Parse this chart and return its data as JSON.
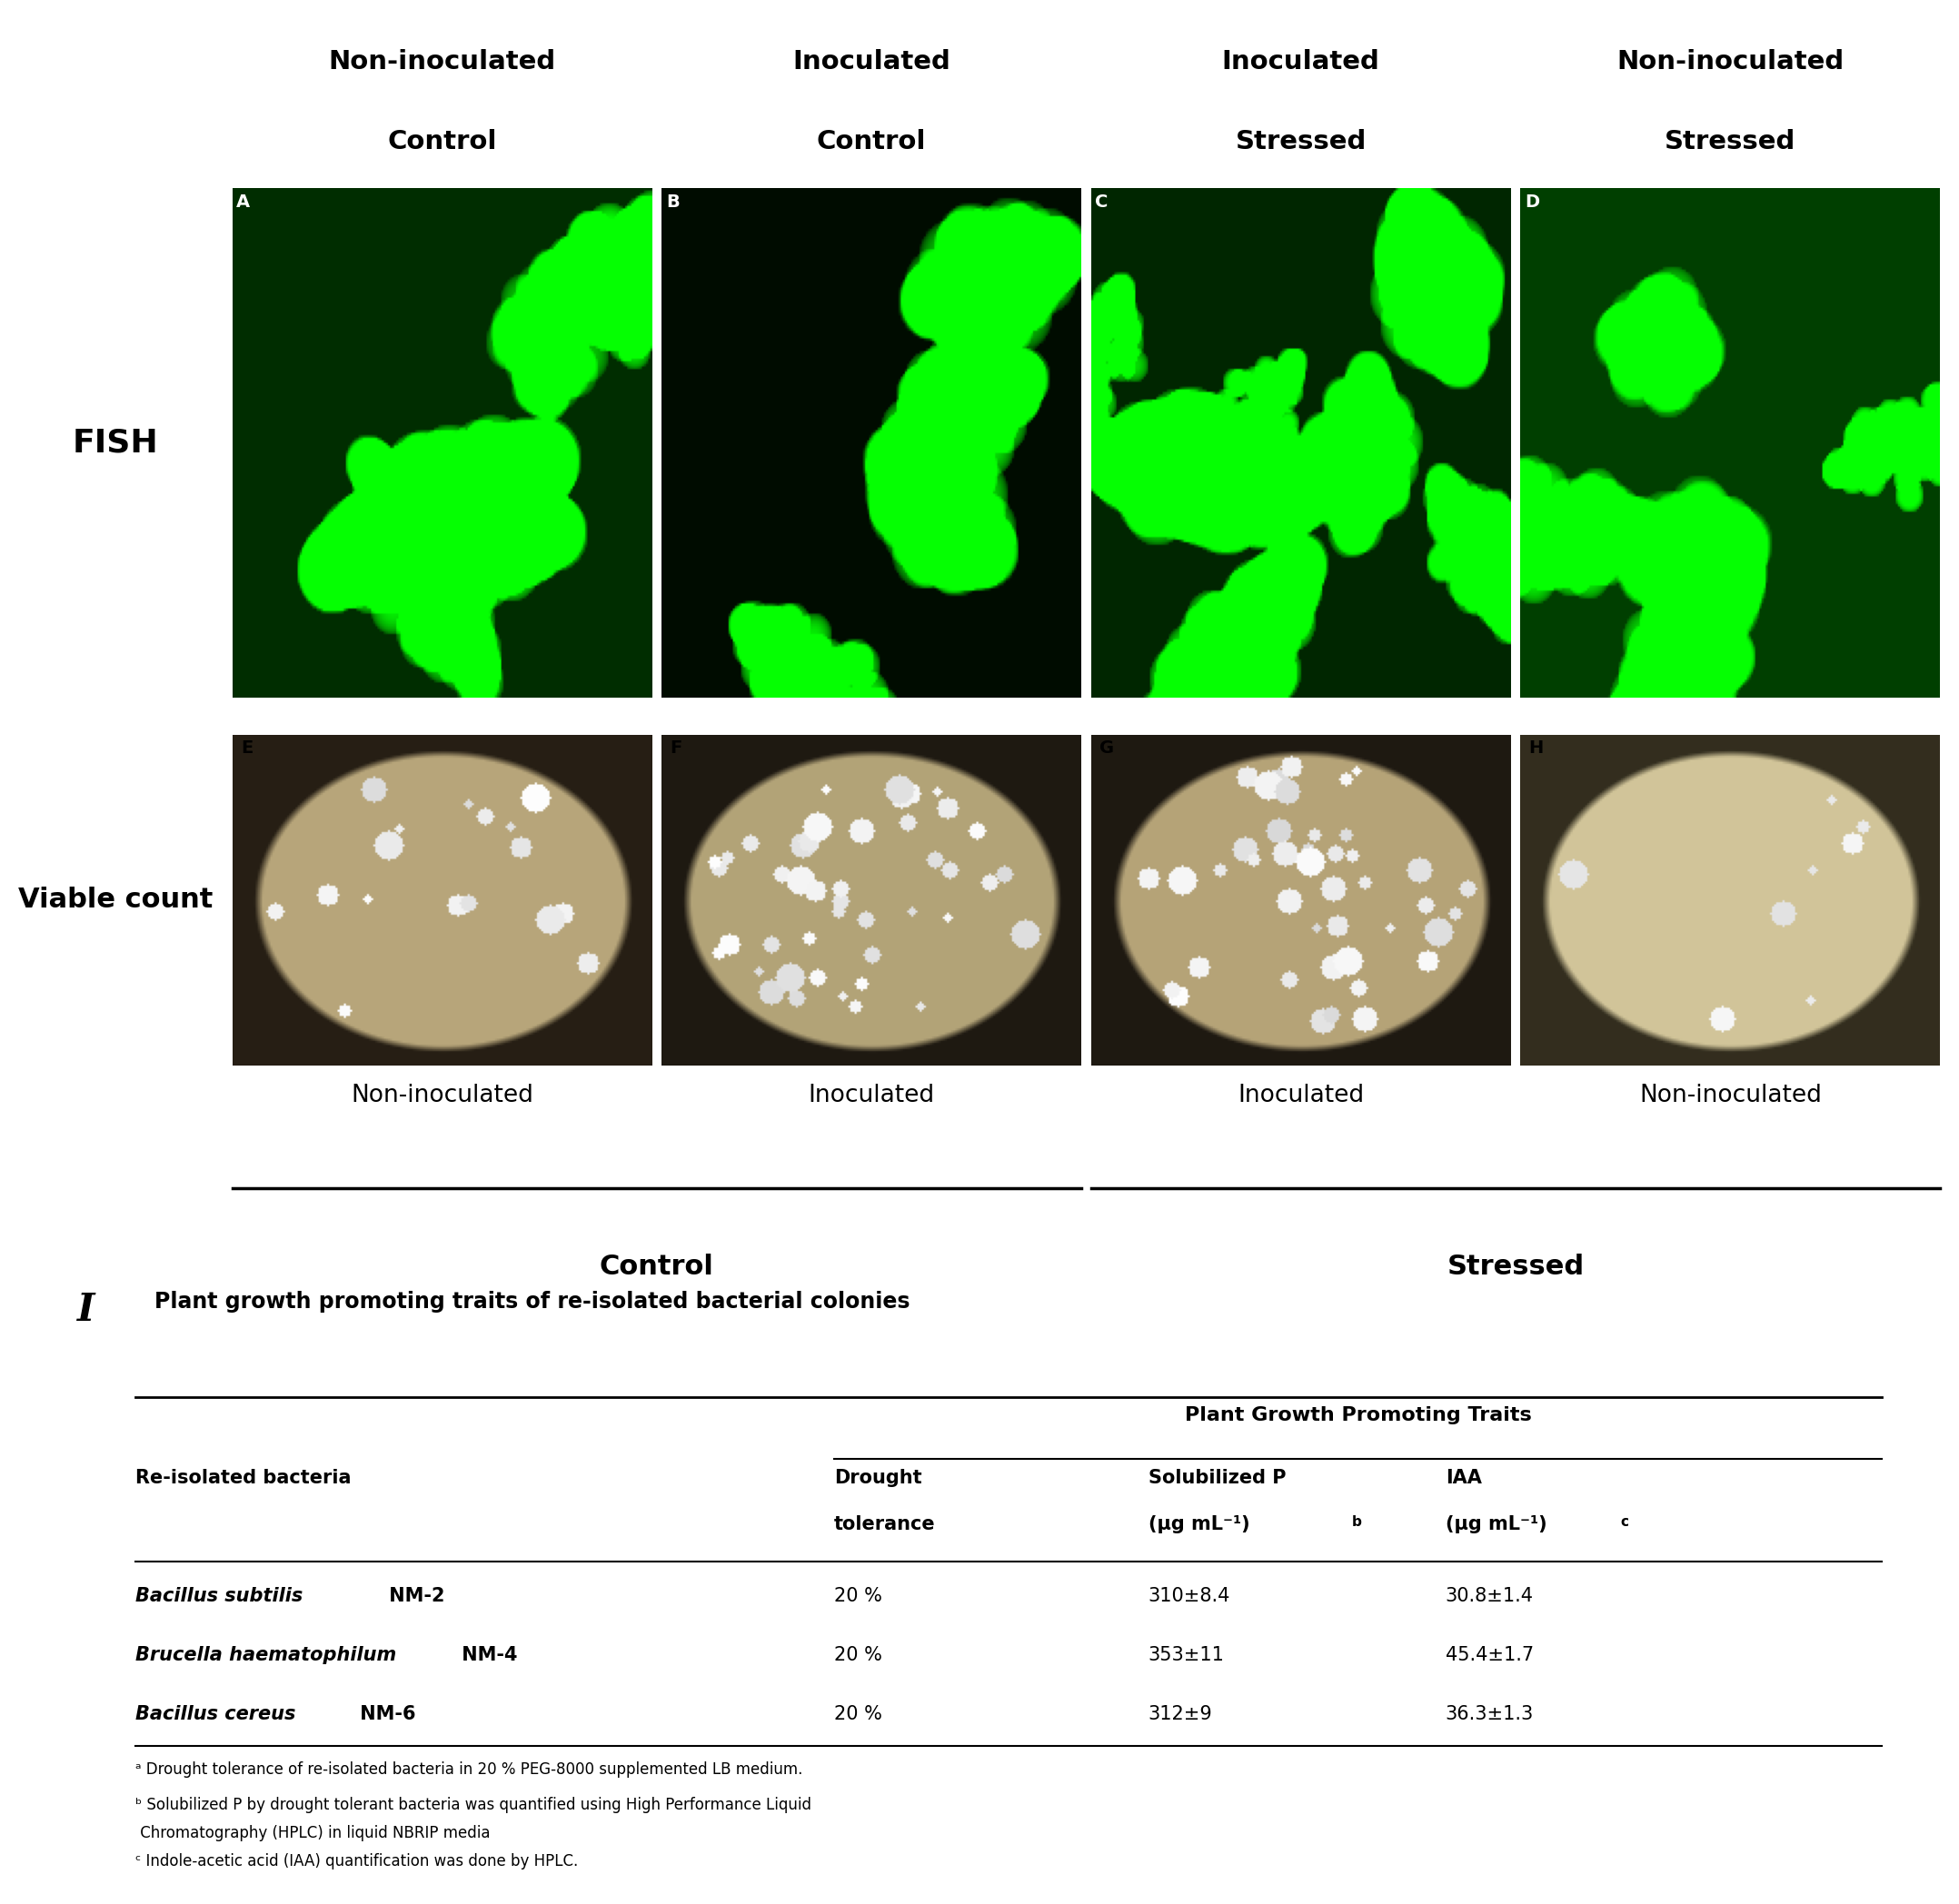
{
  "col_headers": [
    [
      "Non-inoculated",
      "Control"
    ],
    [
      "Inoculated",
      "Control"
    ],
    [
      "Inoculated",
      "Stressed"
    ],
    [
      "Non-inoculated",
      "Stressed"
    ]
  ],
  "row_labels": [
    "FISH",
    "Viable count"
  ],
  "panel_labels_top": [
    "A",
    "B",
    "C",
    "D"
  ],
  "panel_labels_bottom": [
    "E",
    "F",
    "G",
    "H"
  ],
  "bottom_col_labels": [
    "Non-inoculated",
    "Inoculated",
    "Inoculated",
    "Non-inoculated"
  ],
  "bottom_group1_title": "Control",
  "bottom_group2_title": "Stressed",
  "section_label": "I",
  "section_title": "Plant growth promoting traits of re-isolated bacterial colonies",
  "table_header_main": "Plant Growth Promoting Traits",
  "table_col0": "Re-isolated bacteria",
  "table_col1_line1": "Drought",
  "table_col1_line2": "tolerance",
  "table_col2_line1": "Solubilized P",
  "table_col2_line2": "(μg mL⁻¹)ᵇ",
  "table_col3_line1": "IAA",
  "table_col3_line2": "(μg mL⁻¹)ᶜ",
  "table_italic_species": [
    "Bacillus subtilis",
    "Brucella haematophilum",
    "Bacillus cereus"
  ],
  "table_bold_strains": [
    " NM-2",
    " NM-4",
    " NM-6"
  ],
  "table_data": [
    [
      "20 %",
      "310±8.4",
      "30.8±1.4"
    ],
    [
      "20 %",
      "353±11",
      "45.4±1.7"
    ],
    [
      "20 %",
      "312±9",
      "36.3±1.3"
    ]
  ],
  "footnote_a": "ᵃ Drought tolerance of re-isolated bacteria in 20 % PEG-8000 supplemented LB medium.",
  "footnote_b_line1": "ᵇ Solubilized P by drought tolerant bacteria was quantified using High Performance Liquid",
  "footnote_b_line2": " Chromatography (HPLC) in liquid NBRIP media",
  "footnote_c": "ᶜ Indole-acetic acid (IAA) quantification was done by HPLC.",
  "bg_color": "#ffffff"
}
